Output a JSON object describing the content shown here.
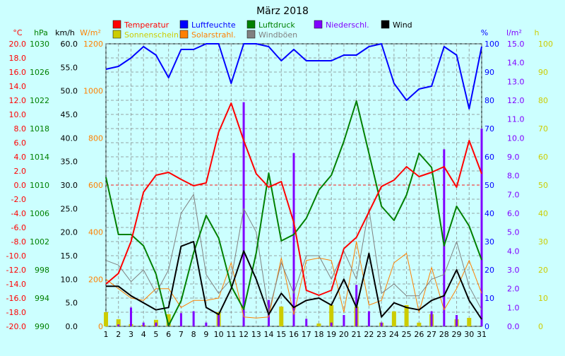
{
  "colors": {
    "background": "#ccffff",
    "plot_background": "#ccffff",
    "temperature": "#ff0000",
    "humidity": "#0000ff",
    "pressure": "#008000",
    "precipitation": "#8000ff",
    "wind": "#000000",
    "sunshine": "#cccc00",
    "solar": "#ff8000",
    "gusts": "#808080",
    "solar_axis": "#ff8000",
    "sun_axis": "#cccc00",
    "grid": "#808080"
  },
  "chart_data": {
    "type": "line",
    "title": "März 2018",
    "x_categories": [
      "1",
      "2",
      "3",
      "4",
      "5",
      "6",
      "7",
      "8",
      "9",
      "10",
      "11",
      "12",
      "13",
      "14",
      "15",
      "16",
      "17",
      "18",
      "19",
      "20",
      "21",
      "22",
      "23",
      "24",
      "25",
      "26",
      "27",
      "28",
      "29",
      "30",
      "31"
    ],
    "grid": true,
    "legend": [
      {
        "label": "Temperatur",
        "color": "#ff0000"
      },
      {
        "label": "Luftfeuchte",
        "color": "#0000ff"
      },
      {
        "label": "Luftdruck",
        "color": "#008000"
      },
      {
        "label": "Niederschl.",
        "color": "#8000ff"
      },
      {
        "label": "Wind",
        "color": "#000000"
      },
      {
        "label": "Sonnenschein",
        "color": "#cccc00"
      },
      {
        "label": "Solarstrahl.",
        "color": "#ff8000"
      },
      {
        "label": "Windböen",
        "color": "#808080"
      }
    ],
    "axes": {
      "temperature": {
        "unit": "°C",
        "range": [
          -20,
          20
        ],
        "ticks": [
          "-20.0",
          "-18.0",
          "-16.0",
          "-14.0",
          "-12.0",
          "-10.0",
          "-8.0",
          "-6.0",
          "-4.0",
          "-2.0",
          "0.0",
          "2.0",
          "4.0",
          "6.0",
          "8.0",
          "10.0",
          "12.0",
          "14.0",
          "16.0",
          "18.0",
          "20.0"
        ]
      },
      "pressure": {
        "unit": "hPa",
        "range": [
          990,
          1030
        ],
        "ticks": [
          "990",
          "994",
          "998",
          "1002",
          "1006",
          "1010",
          "1014",
          "1018",
          "1022",
          "1026",
          "1030"
        ]
      },
      "wind": {
        "unit": "km/h",
        "range": [
          0,
          60
        ],
        "ticks": [
          "0.0",
          "5.0",
          "10.0",
          "15.0",
          "20.0",
          "25.0",
          "30.0",
          "35.0",
          "40.0",
          "45.0",
          "50.0",
          "55.0",
          "60.0"
        ]
      },
      "solar": {
        "unit": "W/m²",
        "range": [
          0,
          1200
        ],
        "ticks": [
          "0",
          "200",
          "400",
          "600",
          "800",
          "1000",
          "1200"
        ]
      },
      "humidity": {
        "unit": "%",
        "range": [
          0,
          100
        ],
        "ticks": [
          "0",
          "10",
          "20",
          "30",
          "40",
          "50",
          "60",
          "70",
          "80",
          "90",
          "100"
        ]
      },
      "precipitation": {
        "unit": "l/m²",
        "range": [
          0,
          15
        ],
        "ticks": [
          "0.0",
          "1.0",
          "2.0",
          "3.0",
          "4.0",
          "5.0",
          "6.0",
          "7.0",
          "8.0",
          "9.0",
          "10.0",
          "11.0",
          "12.0",
          "13.0",
          "14.0",
          "15.0"
        ]
      },
      "sunshine": {
        "unit": "h",
        "range": [
          0,
          100
        ],
        "ticks": [
          "0",
          "10",
          "20",
          "30",
          "40",
          "50",
          "60",
          "70",
          "80",
          "90",
          "100"
        ]
      }
    },
    "series": [
      {
        "name": "Temperatur",
        "axis": "temperature",
        "kind": "line",
        "values": [
          -14.0,
          -12.5,
          -8.0,
          -1.0,
          1.4,
          1.8,
          0.8,
          -0.1,
          0.3,
          7.5,
          11.6,
          6.3,
          1.6,
          -0.3,
          0.5,
          -5.3,
          -14.9,
          -15.6,
          -14.9,
          -9.0,
          -7.4,
          -3.8,
          -0.2,
          0.7,
          2.6,
          1.2,
          1.8,
          2.6,
          -0.3,
          6.3,
          1.6
        ]
      },
      {
        "name": "Luftfeuchte",
        "axis": "humidity",
        "kind": "line",
        "values": [
          91,
          92,
          95,
          99,
          96,
          88,
          98,
          98,
          100,
          100,
          86,
          100,
          100,
          99,
          94,
          98,
          94,
          94,
          94,
          96,
          96,
          99,
          100,
          86,
          80,
          84,
          85,
          99,
          96,
          77,
          99
        ]
      },
      {
        "name": "Luftdruck",
        "axis": "pressure",
        "kind": "line",
        "values": [
          1011.1,
          1003.0,
          1003.0,
          1001.4,
          997.4,
          990.1,
          993.6,
          1000.4,
          1005.7,
          1002.5,
          995.7,
          992.4,
          1000.4,
          1011.7,
          1002.1,
          1003.0,
          1005.3,
          1009.3,
          1011.4,
          1016.2,
          1021.9,
          1014.5,
          1007.0,
          1005.0,
          1008.6,
          1014.5,
          1012.5,
          1001.4,
          1007.0,
          1004.2,
          999.4
        ]
      },
      {
        "name": "Wind",
        "axis": "wind",
        "kind": "line",
        "values": [
          8.5,
          8.5,
          6.5,
          5.0,
          3.5,
          4.0,
          17.0,
          18.0,
          4.0,
          2.5,
          8.0,
          16.0,
          10.0,
          2.5,
          7.0,
          4.0,
          5.5,
          6.0,
          4.5,
          10.0,
          4.0,
          15.5,
          2.0,
          5.0,
          4.0,
          3.5,
          5.5,
          6.5,
          12.0,
          5.5,
          1.5
        ]
      },
      {
        "name": "Windböen",
        "axis": "wind",
        "kind": "line",
        "values": [
          14.0,
          13.0,
          9.5,
          12.0,
          7.0,
          12.0,
          24.0,
          28.0,
          11.0,
          7.0,
          10.0,
          25.0,
          20.0,
          3.0,
          13.5,
          7.0,
          15.0,
          15.0,
          10.0,
          16.0,
          10.0,
          25.0,
          7.0,
          9.0,
          6.5,
          6.5,
          10.0,
          11.0,
          18.0,
          8.5,
          3.5
        ]
      },
      {
        "name": "Solarstrahl.",
        "axis": "solar",
        "kind": "line",
        "values": [
          200,
          160,
          120,
          110,
          160,
          160,
          80,
          110,
          110,
          120,
          270,
          40,
          35,
          40,
          290,
          50,
          280,
          290,
          280,
          60,
          360,
          90,
          110,
          270,
          310,
          60,
          250,
          70,
          160,
          280,
          140
        ]
      },
      {
        "name": "Niederschl.",
        "axis": "precipitation",
        "kind": "bar",
        "values": [
          0.0,
          0.1,
          1.0,
          0.2,
          0.2,
          0.2,
          0.7,
          0.8,
          0.2,
          0.6,
          0.0,
          11.9,
          0.0,
          1.4,
          0.0,
          9.2,
          0.4,
          0.0,
          0.2,
          0.6,
          2.2,
          0.8,
          0.2,
          0.0,
          0.0,
          0.0,
          0.8,
          9.4,
          0.6,
          0.0,
          10.5
        ]
      },
      {
        "name": "Sonnenschein",
        "axis": "sunshine",
        "kind": "bar",
        "values": [
          5.0,
          2.5,
          0.8,
          0.5,
          2.3,
          4.3,
          0.0,
          0.0,
          0.0,
          5.0,
          0.0,
          0.0,
          0.0,
          0.0,
          7.0,
          0.0,
          0.0,
          1.0,
          7.5,
          0.0,
          7.0,
          0.0,
          1.3,
          5.3,
          7.5,
          1.3,
          4.3,
          0.0,
          2.5,
          3.0,
          0.0
        ]
      }
    ]
  }
}
